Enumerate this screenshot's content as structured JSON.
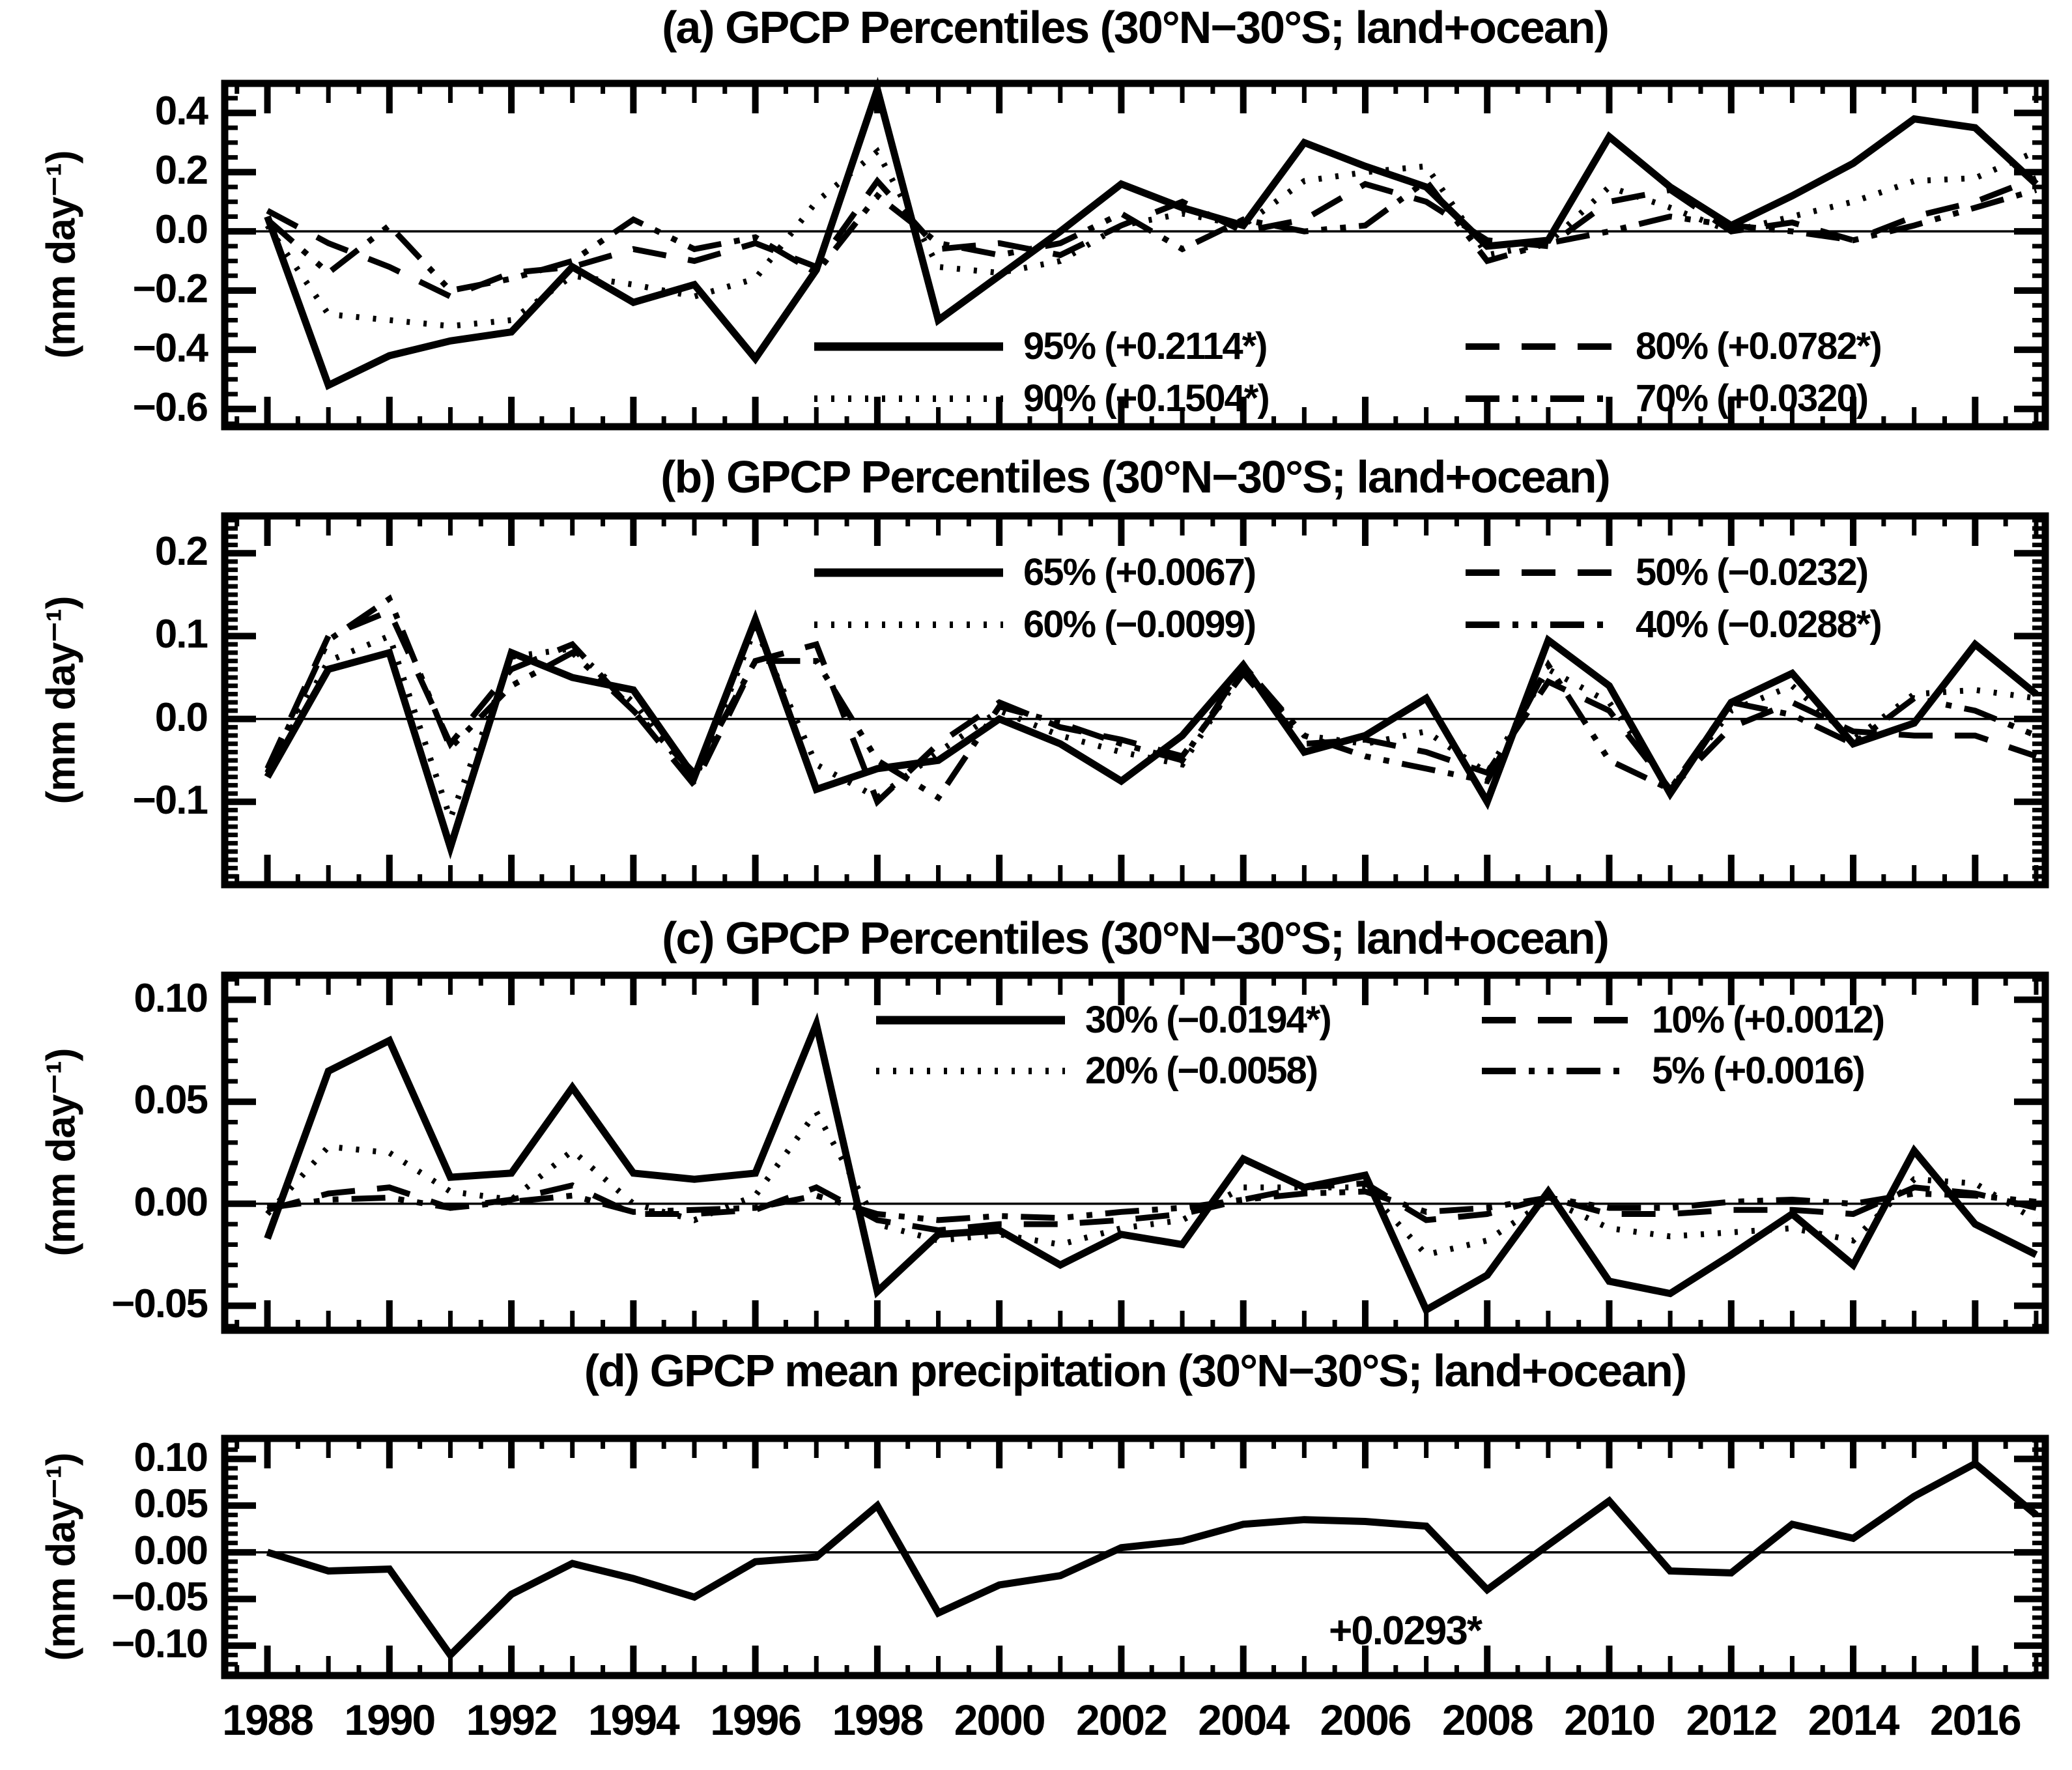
{
  "figure": {
    "background_color": "#ffffff",
    "stroke_color": "#000000",
    "description": "Four stacked time-series panels of GPCP precipitation percentile anomalies and mean precipitation, 1988-2017"
  },
  "xaxis": {
    "labels": [
      "1988",
      "1990",
      "1992",
      "1994",
      "1996",
      "1998",
      "2000",
      "2002",
      "2004",
      "2006",
      "2008",
      "2010",
      "2012",
      "2014",
      "2016"
    ],
    "label_step_years": 2
  },
  "chart_data": [
    {
      "id": "a",
      "type": "line",
      "title": "(a) GPCP Percentiles (30°N−30°S; land+ocean)",
      "ylabel": "(mm day⁻¹)",
      "x_start": 1988,
      "x_end": 2017,
      "ylim": [
        -0.66,
        0.5
      ],
      "y_minor": 0.05,
      "grid": false,
      "legend_position": "inside lower center-right",
      "yticks": [
        {
          "v": 0.4,
          "label": "0.4"
        },
        {
          "v": 0.2,
          "label": "0.2"
        },
        {
          "v": 0.0,
          "label": "0.0"
        },
        {
          "v": -0.2,
          "label": "−0.2"
        },
        {
          "v": -0.4,
          "label": "−0.4"
        },
        {
          "v": -0.6,
          "label": "−0.6"
        }
      ],
      "legend": [
        "95% (+0.2114*)",
        "90% (+0.1504*)",
        "80% (+0.0782*)",
        "70% (+0.0320)"
      ],
      "series": [
        {
          "name": "95%",
          "trend": "+0.2114*",
          "style": "solid",
          "values": [
            0.05,
            -0.52,
            -0.42,
            -0.37,
            -0.34,
            -0.12,
            -0.24,
            -0.18,
            -0.43,
            -0.13,
            0.48,
            -0.3,
            -0.15,
            0.0,
            0.16,
            0.08,
            0.02,
            0.3,
            0.22,
            0.15,
            -0.05,
            -0.03,
            0.32,
            0.15,
            0.02,
            0.12,
            0.23,
            0.38,
            0.35,
            0.16
          ]
        },
        {
          "name": "90%",
          "trend": "+0.1504*",
          "style": "dotted",
          "values": [
            0.02,
            -0.28,
            -0.3,
            -0.32,
            -0.3,
            -0.15,
            -0.18,
            -0.22,
            -0.16,
            0.1,
            0.27,
            -0.12,
            -0.14,
            -0.1,
            0.02,
            0.06,
            0.02,
            0.17,
            0.2,
            0.22,
            -0.08,
            -0.04,
            0.15,
            0.08,
            0.0,
            0.05,
            0.1,
            0.17,
            0.18,
            0.27
          ]
        },
        {
          "name": "80%",
          "trend": "+0.0782*",
          "style": "dashed",
          "values": [
            0.07,
            -0.04,
            -0.12,
            -0.22,
            -0.14,
            -0.12,
            -0.06,
            -0.1,
            -0.04,
            -0.12,
            0.17,
            -0.06,
            -0.04,
            -0.08,
            0.02,
            0.1,
            0.0,
            0.04,
            0.16,
            0.1,
            -0.03,
            -0.05,
            0.1,
            0.14,
            0.0,
            0.03,
            -0.03,
            0.05,
            0.1,
            0.18
          ]
        },
        {
          "name": "70%",
          "trend": "+0.0320",
          "style": "dashdot",
          "values": [
            0.04,
            -0.14,
            0.02,
            -0.2,
            -0.16,
            -0.1,
            0.04,
            -0.06,
            -0.02,
            -0.14,
            0.12,
            -0.04,
            -0.08,
            -0.04,
            0.06,
            -0.06,
            0.04,
            0.0,
            0.02,
            0.17,
            -0.1,
            -0.04,
            0.0,
            0.05,
            0.02,
            0.0,
            -0.03,
            0.02,
            0.08,
            0.14
          ]
        }
      ]
    },
    {
      "id": "b",
      "type": "line",
      "title": "(b) GPCP Percentiles (30°N−30°S; land+ocean)",
      "ylabel": "(mm day⁻¹)",
      "x_start": 1988,
      "x_end": 2017,
      "ylim": [
        -0.2,
        0.245
      ],
      "y_minor": 0.01,
      "grid": false,
      "legend_position": "inside upper center-right",
      "yticks": [
        {
          "v": 0.2,
          "label": "0.2"
        },
        {
          "v": 0.1,
          "label": "0.1"
        },
        {
          "v": 0.0,
          "label": "0.0"
        },
        {
          "v": -0.1,
          "label": "−0.1"
        }
      ],
      "legend": [
        "65% (+0.0067)",
        "60% (−0.0099)",
        "50% (−0.0232)",
        "40% (−0.0288*)"
      ],
      "series": [
        {
          "name": "65%",
          "trend": "+0.0067",
          "style": "solid",
          "values": [
            -0.07,
            0.06,
            0.08,
            -0.155,
            0.08,
            0.05,
            0.035,
            -0.07,
            0.12,
            -0.085,
            -0.06,
            -0.05,
            0.0,
            -0.03,
            -0.075,
            -0.02,
            0.065,
            -0.04,
            -0.02,
            0.025,
            -0.1,
            0.095,
            0.04,
            -0.09,
            0.02,
            0.055,
            -0.03,
            -0.005,
            0.09,
            0.03
          ]
        },
        {
          "name": "60%",
          "trend": "−0.0099",
          "style": "dotted",
          "values": [
            -0.065,
            0.07,
            0.1,
            -0.12,
            0.075,
            0.085,
            0.02,
            -0.075,
            0.11,
            -0.055,
            -0.095,
            -0.04,
            0.01,
            -0.02,
            -0.04,
            -0.055,
            0.06,
            -0.02,
            -0.03,
            -0.015,
            -0.065,
            0.06,
            0.02,
            -0.085,
            0.01,
            0.04,
            -0.025,
            0.03,
            0.035,
            0.025
          ]
        },
        {
          "name": "50%",
          "trend": "−0.0232",
          "style": "dashed",
          "values": [
            -0.06,
            0.1,
            0.13,
            -0.03,
            0.06,
            0.09,
            0.01,
            -0.08,
            0.07,
            0.09,
            -0.1,
            -0.03,
            0.02,
            -0.01,
            -0.025,
            -0.045,
            0.055,
            -0.03,
            -0.025,
            -0.04,
            -0.065,
            0.045,
            0.01,
            -0.085,
            -0.01,
            0.02,
            -0.015,
            -0.02,
            -0.02,
            -0.045
          ]
        },
        {
          "name": "40%",
          "trend": "−0.0288*",
          "style": "dashdot",
          "values": [
            -0.065,
            0.095,
            0.145,
            -0.035,
            0.04,
            0.08,
            0.01,
            -0.065,
            0.07,
            0.07,
            -0.05,
            -0.095,
            0.015,
            -0.005,
            -0.03,
            -0.05,
            0.065,
            -0.02,
            -0.045,
            -0.06,
            -0.075,
            0.065,
            -0.05,
            -0.085,
            0.02,
            0.005,
            -0.03,
            0.025,
            0.01,
            -0.02
          ]
        }
      ]
    },
    {
      "id": "c",
      "type": "line",
      "title": "(c) GPCP Percentiles (30°N−30°S; land+ocean)",
      "ylabel": "(mm day⁻¹)",
      "x_start": 1988,
      "x_end": 2017,
      "ylim": [
        -0.062,
        0.112
      ],
      "y_minor": 0.01,
      "grid": false,
      "legend_position": "inside upper center-right",
      "yticks": [
        {
          "v": 0.1,
          "label": "0.10"
        },
        {
          "v": 0.05,
          "label": "0.05"
        },
        {
          "v": 0.0,
          "label": "0.00"
        },
        {
          "v": -0.05,
          "label": "−0.05"
        }
      ],
      "legend": [
        "30% (−0.0194*)",
        "20% (−0.0058)",
        "10% (+0.0012)",
        "5% (+0.0016)"
      ],
      "series": [
        {
          "name": "30%",
          "trend": "−0.0194*",
          "style": "solid",
          "values": [
            -0.017,
            0.065,
            0.08,
            0.013,
            0.015,
            0.057,
            0.015,
            0.012,
            0.015,
            0.088,
            -0.043,
            -0.015,
            -0.013,
            -0.03,
            -0.015,
            -0.02,
            0.022,
            0.008,
            0.014,
            -0.052,
            -0.035,
            0.006,
            -0.038,
            -0.044,
            -0.025,
            -0.005,
            -0.03,
            0.026,
            -0.01,
            -0.025
          ]
        },
        {
          "name": "20%",
          "trend": "−0.0058",
          "style": "dotted",
          "values": [
            -0.005,
            0.028,
            0.025,
            0.006,
            0.002,
            0.026,
            0.0,
            -0.008,
            0.004,
            0.045,
            -0.01,
            -0.018,
            -0.015,
            -0.02,
            -0.012,
            -0.008,
            0.008,
            0.008,
            0.008,
            -0.025,
            -0.018,
            0.002,
            -0.012,
            -0.016,
            -0.014,
            -0.012,
            -0.018,
            0.012,
            0.01,
            -0.008
          ]
        },
        {
          "name": "10%",
          "trend": "+0.0012",
          "style": "dashed",
          "values": [
            -0.003,
            0.005,
            0.008,
            -0.002,
            0.002,
            0.009,
            -0.005,
            -0.005,
            -0.003,
            0.008,
            -0.008,
            -0.013,
            -0.01,
            -0.01,
            -0.008,
            -0.005,
            0.002,
            0.008,
            0.01,
            -0.008,
            -0.005,
            0.003,
            -0.005,
            -0.005,
            -0.003,
            -0.003,
            -0.005,
            0.008,
            0.005,
            -0.002
          ]
        },
        {
          "name": "5%",
          "trend": "+0.0016",
          "style": "dashdot",
          "values": [
            -0.002,
            0.002,
            0.003,
            -0.002,
            0.001,
            0.004,
            -0.004,
            -0.003,
            -0.002,
            0.004,
            -0.005,
            -0.008,
            -0.006,
            -0.007,
            -0.004,
            -0.002,
            0.002,
            0.005,
            0.006,
            -0.004,
            -0.002,
            0.003,
            -0.002,
            -0.002,
            0.001,
            0.002,
            0.0,
            0.005,
            0.004,
            0.001
          ]
        }
      ]
    },
    {
      "id": "d",
      "type": "line",
      "title": "(d) GPCP mean precipitation (30°N−30°S; land+ocean)",
      "ylabel": "(mm day⁻¹)",
      "x_start": 1988,
      "x_end": 2017,
      "ylim": [
        -0.132,
        0.122
      ],
      "y_minor": 0.01,
      "grid": false,
      "annotation": "+0.0293*",
      "yticks": [
        {
          "v": 0.1,
          "label": "0.10"
        },
        {
          "v": 0.05,
          "label": "0.05"
        },
        {
          "v": 0.0,
          "label": "0.00"
        },
        {
          "v": -0.05,
          "label": "−0.05"
        },
        {
          "v": -0.1,
          "label": "−0.10"
        }
      ],
      "legend": [],
      "series": [
        {
          "name": "mean precipitation",
          "trend": "+0.0293*",
          "style": "solid",
          "values": [
            0.0,
            -0.02,
            -0.018,
            -0.11,
            -0.045,
            -0.012,
            -0.028,
            -0.048,
            -0.01,
            -0.005,
            0.05,
            -0.065,
            -0.035,
            -0.025,
            0.005,
            0.012,
            0.03,
            0.035,
            0.033,
            0.028,
            -0.04,
            0.008,
            0.055,
            -0.02,
            -0.022,
            0.03,
            0.015,
            0.06,
            0.095,
            0.04
          ]
        }
      ]
    }
  ]
}
